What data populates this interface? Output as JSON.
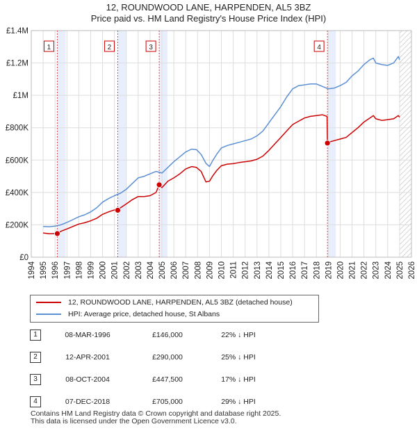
{
  "chart_data": {
    "type": "line",
    "title": "12, ROUNDWOOD LANE, HARPENDEN, AL5 3BZ",
    "subtitle": "Price paid vs. HM Land Registry's House Price Index (HPI)",
    "xlim": [
      1994,
      2026
    ],
    "ylim": [
      0,
      1400000
    ],
    "x_ticks": [
      "1994",
      "1995",
      "1996",
      "1997",
      "1998",
      "1999",
      "2000",
      "2001",
      "2002",
      "2003",
      "2004",
      "2005",
      "2006",
      "2007",
      "2008",
      "2009",
      "2010",
      "2011",
      "2012",
      "2013",
      "2014",
      "2015",
      "2016",
      "2017",
      "2018",
      "2019",
      "2020",
      "2021",
      "2022",
      "2023",
      "2024",
      "2025",
      "2026"
    ],
    "y_ticks": [
      {
        "value": 0,
        "label": "£0"
      },
      {
        "value": 200000,
        "label": "£200K"
      },
      {
        "value": 400000,
        "label": "£400K"
      },
      {
        "value": 600000,
        "label": "£600K"
      },
      {
        "value": 800000,
        "label": "£800K"
      },
      {
        "value": 1000000,
        "label": "£1M"
      },
      {
        "value": 1200000,
        "label": "£1.2M"
      },
      {
        "value": 1400000,
        "label": "£1.4M"
      }
    ],
    "grid": true,
    "series": [
      {
        "name": "12, ROUNDWOOD LANE, HARPENDEN, AL5 3BZ (detached house)",
        "color": "#cc0000",
        "x": [
          1995.0,
          1995.5,
          1996.19,
          1996.5,
          1997.0,
          1997.5,
          1998.0,
          1998.5,
          1999.0,
          1999.5,
          2000.0,
          2000.5,
          2001.0,
          2001.28,
          2001.5,
          2002.0,
          2002.5,
          2003.0,
          2003.5,
          2004.0,
          2004.5,
          2004.77,
          2005.0,
          2005.5,
          2006.0,
          2006.5,
          2007.0,
          2007.5,
          2007.9,
          2008.3,
          2008.7,
          2009.0,
          2009.3,
          2009.6,
          2010.0,
          2010.5,
          2011.0,
          2011.5,
          2012.0,
          2012.5,
          2013.0,
          2013.5,
          2014.0,
          2014.5,
          2015.0,
          2015.5,
          2016.0,
          2016.5,
          2017.0,
          2017.5,
          2018.0,
          2018.5,
          2018.9,
          2018.93,
          2019.0,
          2019.5,
          2020.0,
          2020.5,
          2021.0,
          2021.5,
          2022.0,
          2022.5,
          2022.8,
          2023.0,
          2023.5,
          2024.0,
          2024.5,
          2024.9,
          2025.0
        ],
        "values": [
          150000,
          145000,
          146000,
          160000,
          175000,
          190000,
          205000,
          213000,
          225000,
          240000,
          265000,
          280000,
          292000,
          290000,
          305000,
          330000,
          355000,
          375000,
          375000,
          380000,
          400000,
          447500,
          430000,
          470000,
          490000,
          515000,
          545000,
          560000,
          555000,
          530000,
          465000,
          470000,
          505000,
          535000,
          565000,
          575000,
          578000,
          585000,
          590000,
          595000,
          605000,
          625000,
          660000,
          700000,
          740000,
          780000,
          820000,
          840000,
          860000,
          870000,
          875000,
          880000,
          870000,
          705000,
          710000,
          720000,
          730000,
          740000,
          770000,
          800000,
          835000,
          860000,
          875000,
          855000,
          845000,
          850000,
          855000,
          875000,
          865000
        ]
      },
      {
        "name": "HPI: Average price, detached house, St Albans",
        "color": "#5b8fd4",
        "x": [
          1995.0,
          1995.5,
          1996.0,
          1996.5,
          1997.0,
          1997.5,
          1998.0,
          1998.5,
          1999.0,
          1999.5,
          2000.0,
          2000.5,
          2001.0,
          2001.5,
          2002.0,
          2002.5,
          2003.0,
          2003.5,
          2004.0,
          2004.5,
          2005.0,
          2005.5,
          2006.0,
          2006.5,
          2007.0,
          2007.5,
          2007.9,
          2008.3,
          2008.7,
          2009.0,
          2009.3,
          2009.6,
          2010.0,
          2010.5,
          2011.0,
          2011.5,
          2012.0,
          2012.5,
          2013.0,
          2013.5,
          2014.0,
          2014.5,
          2015.0,
          2015.5,
          2016.0,
          2016.5,
          2017.0,
          2017.5,
          2018.0,
          2018.5,
          2019.0,
          2019.5,
          2020.0,
          2020.5,
          2021.0,
          2021.5,
          2022.0,
          2022.5,
          2022.8,
          2023.0,
          2023.5,
          2024.0,
          2024.5,
          2024.9,
          2025.0
        ],
        "values": [
          190000,
          188000,
          192000,
          200000,
          215000,
          232000,
          250000,
          262000,
          280000,
          305000,
          340000,
          362000,
          380000,
          395000,
          420000,
          455000,
          490000,
          500000,
          515000,
          530000,
          520000,
          555000,
          590000,
          620000,
          650000,
          668000,
          665000,
          635000,
          580000,
          560000,
          600000,
          635000,
          675000,
          690000,
          700000,
          710000,
          720000,
          730000,
          750000,
          780000,
          830000,
          880000,
          930000,
          990000,
          1040000,
          1060000,
          1065000,
          1070000,
          1070000,
          1055000,
          1040000,
          1045000,
          1060000,
          1080000,
          1120000,
          1150000,
          1190000,
          1220000,
          1230000,
          1200000,
          1190000,
          1185000,
          1200000,
          1240000,
          1220000
        ]
      }
    ],
    "sales": [
      {
        "num": "1",
        "date": "08-MAR-1996",
        "x": 1996.19,
        "price": "£146,000",
        "value": 146000,
        "hpi": "22% ↓ HPI"
      },
      {
        "num": "2",
        "date": "12-APR-2001",
        "x": 2001.28,
        "price": "£290,000",
        "value": 290000,
        "hpi": "25% ↓ HPI"
      },
      {
        "num": "3",
        "date": "08-OCT-2004",
        "x": 2004.77,
        "price": "£447,500",
        "value": 447500,
        "hpi": "17% ↓ HPI"
      },
      {
        "num": "4",
        "date": "07-DEC-2018",
        "x": 2018.93,
        "price": "£705,000",
        "value": 705000,
        "hpi": "29% ↓ HPI"
      }
    ],
    "shade_x": 2025.0
  },
  "footer": {
    "line1": "Contains HM Land Registry data © Crown copyright and database right 2025.",
    "line2": "This data is licensed under the Open Government Licence v3.0."
  }
}
